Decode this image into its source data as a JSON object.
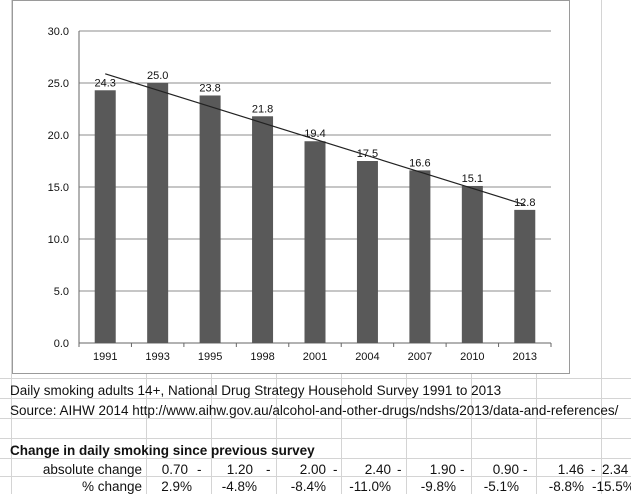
{
  "chart_data": {
    "type": "bar",
    "categories": [
      "1991",
      "1993",
      "1995",
      "1998",
      "2001",
      "2004",
      "2007",
      "2010",
      "2013"
    ],
    "values": [
      24.3,
      25.0,
      23.8,
      21.8,
      19.4,
      17.5,
      16.6,
      15.1,
      12.8
    ],
    "data_labels": [
      "24.3",
      "25.0",
      "23.8",
      "21.8",
      "19.4",
      "17.5",
      "16.6",
      "15.1",
      "12.8"
    ],
    "y_ticks": [
      "0.0",
      "5.0",
      "10.0",
      "15.0",
      "20.0",
      "25.0",
      "30.0"
    ],
    "ylim": [
      0,
      30
    ],
    "grid": true,
    "trendline": true,
    "bar_color": "#595959",
    "title": "",
    "xlabel": "",
    "ylabel": ""
  },
  "caption": "Daily smoking adults 14+, National Drug Strategy Household Survey 1991 to 2013",
  "source": "Source: AIHW 2014 http://www.aihw.gov.au/alcohol-and-other-drugs/ndshs/2013/data-and-references/",
  "change_table": {
    "title": "Change in daily smoking since previous survey",
    "rows": [
      {
        "label": "absolute change",
        "cells": [
          "0.70",
          "-",
          "1.20",
          "-",
          "2.00",
          "-",
          "2.40",
          "-",
          "1.90",
          "-",
          "0.90",
          "-",
          "1.46",
          "-",
          "2.34"
        ]
      },
      {
        "label": "% change",
        "cells": [
          "2.9%",
          "-4.8%",
          "-8.4%",
          "-11.0%",
          "-9.8%",
          "-5.1%",
          "-8.8%",
          "-15.5%"
        ]
      }
    ]
  }
}
